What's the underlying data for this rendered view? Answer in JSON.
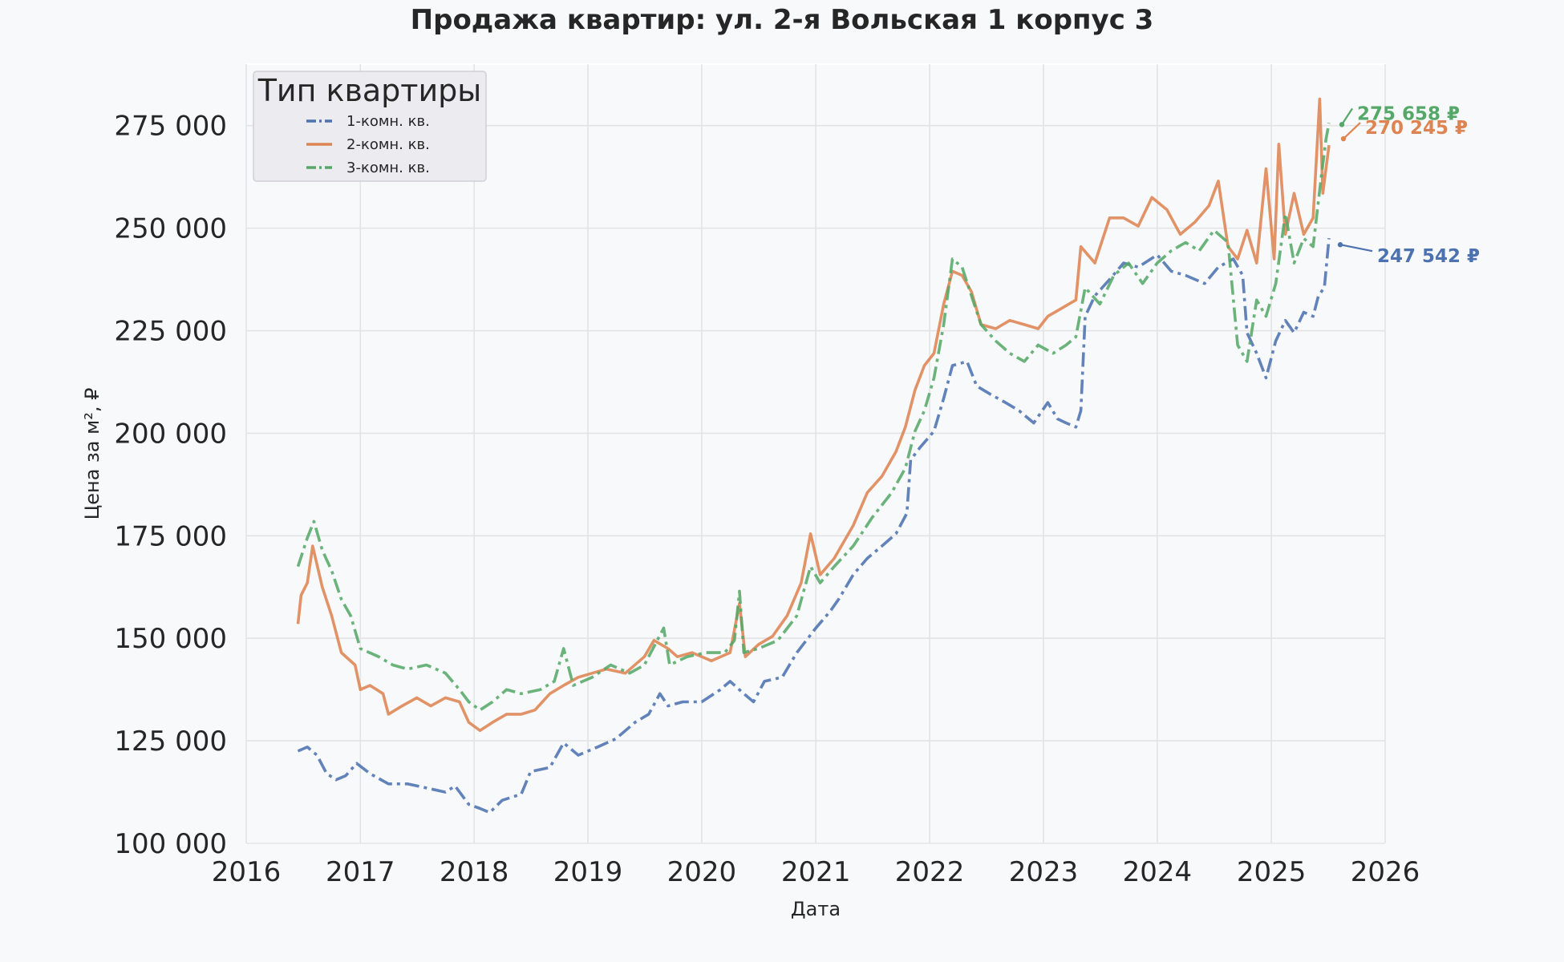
{
  "chart_data": {
    "type": "line",
    "title": "Продажа квартир: ул. 2-я Вольская 1 корпус 3",
    "xlabel": "Дата",
    "ylabel": "Цена за м², ₽",
    "xlim": [
      "2016-01-01",
      "2026-01-01"
    ],
    "ylim": [
      100000,
      290000
    ],
    "x_ticks": [
      "2016",
      "2017",
      "2018",
      "2019",
      "2020",
      "2021",
      "2022",
      "2023",
      "2024",
      "2025",
      "2026"
    ],
    "y_ticks": [
      "100 000",
      "125 000",
      "150 000",
      "175 000",
      "200 000",
      "225 000",
      "250 000",
      "275 000"
    ],
    "grid": true,
    "legend": {
      "title": "Тип квартиры",
      "placement": "top-left"
    },
    "series": [
      {
        "name": "1-комн. кв.",
        "color": "#4c72b0",
        "line_style": "dash-dot",
        "end_label": "247 542 ₽",
        "points": [
          [
            "2016-06-15",
            122500
          ],
          [
            "2016-07-15",
            123500
          ],
          [
            "2016-08-15",
            121500
          ],
          [
            "2016-09-15",
            117000
          ],
          [
            "2016-10-15",
            115500
          ],
          [
            "2016-11-15",
            116500
          ],
          [
            "2016-12-20",
            119500
          ],
          [
            "2017-02-01",
            117000
          ],
          [
            "2017-04-01",
            114500
          ],
          [
            "2017-06-01",
            114500
          ],
          [
            "2017-08-01",
            113500
          ],
          [
            "2017-10-01",
            112500
          ],
          [
            "2017-11-01",
            114000
          ],
          [
            "2017-12-15",
            109500
          ],
          [
            "2018-01-20",
            108500
          ],
          [
            "2018-02-20",
            107500
          ],
          [
            "2018-04-01",
            110500
          ],
          [
            "2018-06-01",
            112000
          ],
          [
            "2018-07-01",
            117500
          ],
          [
            "2018-09-01",
            118500
          ],
          [
            "2018-10-15",
            124500
          ],
          [
            "2018-12-01",
            121500
          ],
          [
            "2019-02-01",
            123500
          ],
          [
            "2019-04-01",
            125500
          ],
          [
            "2019-06-01",
            129500
          ],
          [
            "2019-07-15",
            131500
          ],
          [
            "2019-08-20",
            136500
          ],
          [
            "2019-09-15",
            133500
          ],
          [
            "2019-11-01",
            134500
          ],
          [
            "2020-01-01",
            134500
          ],
          [
            "2020-03-01",
            137500
          ],
          [
            "2020-04-01",
            139500
          ],
          [
            "2020-05-15",
            136500
          ],
          [
            "2020-06-15",
            134500
          ],
          [
            "2020-07-20",
            139500
          ],
          [
            "2020-09-15",
            140500
          ],
          [
            "2020-11-01",
            146500
          ],
          [
            "2021-01-01",
            152500
          ],
          [
            "2021-02-15",
            156500
          ],
          [
            "2021-03-15",
            159500
          ],
          [
            "2021-05-01",
            165500
          ],
          [
            "2021-06-15",
            169500
          ],
          [
            "2021-08-01",
            172500
          ],
          [
            "2021-09-15",
            175500
          ],
          [
            "2021-10-20",
            180500
          ],
          [
            "2021-11-01",
            193500
          ],
          [
            "2021-12-01",
            196500
          ],
          [
            "2022-01-15",
            200500
          ],
          [
            "2022-02-15",
            208500
          ],
          [
            "2022-03-15",
            216500
          ],
          [
            "2022-05-01",
            217500
          ],
          [
            "2022-06-01",
            211500
          ],
          [
            "2022-07-15",
            209500
          ],
          [
            "2022-09-01",
            207500
          ],
          [
            "2022-10-15",
            205500
          ],
          [
            "2022-12-01",
            202500
          ],
          [
            "2023-01-15",
            207500
          ],
          [
            "2023-02-15",
            203500
          ],
          [
            "2023-03-15",
            202500
          ],
          [
            "2023-04-15",
            201500
          ],
          [
            "2023-05-01",
            205500
          ],
          [
            "2023-05-15",
            228500
          ],
          [
            "2023-06-15",
            233500
          ],
          [
            "2023-08-01",
            237500
          ],
          [
            "2023-09-15",
            241500
          ],
          [
            "2023-11-01",
            240500
          ],
          [
            "2024-01-01",
            243500
          ],
          [
            "2024-02-15",
            239500
          ],
          [
            "2024-04-01",
            238500
          ],
          [
            "2024-06-01",
            236500
          ],
          [
            "2024-07-15",
            240500
          ],
          [
            "2024-09-01",
            242500
          ],
          [
            "2024-10-01",
            238500
          ],
          [
            "2024-10-15",
            224500
          ],
          [
            "2024-11-15",
            219500
          ],
          [
            "2024-12-15",
            213500
          ],
          [
            "2025-01-15",
            222500
          ],
          [
            "2025-02-15",
            227500
          ],
          [
            "2025-03-15",
            224500
          ],
          [
            "2025-04-15",
            229500
          ],
          [
            "2025-05-15",
            228500
          ],
          [
            "2025-06-01",
            233500
          ],
          [
            "2025-06-20",
            235500
          ],
          [
            "2025-07-05",
            247542
          ]
        ]
      },
      {
        "name": "2-комн. кв.",
        "color": "#dd8452",
        "line_style": "solid",
        "end_label": "270 245 ₽",
        "points": [
          [
            "2016-06-15",
            153500
          ],
          [
            "2016-06-25",
            160500
          ],
          [
            "2016-07-15",
            163500
          ],
          [
            "2016-08-01",
            172500
          ],
          [
            "2016-09-01",
            162500
          ],
          [
            "2016-10-01",
            155500
          ],
          [
            "2016-11-01",
            146500
          ],
          [
            "2016-12-15",
            143500
          ],
          [
            "2017-01-01",
            137500
          ],
          [
            "2017-02-01",
            138500
          ],
          [
            "2017-03-15",
            136500
          ],
          [
            "2017-04-01",
            131500
          ],
          [
            "2017-05-15",
            133500
          ],
          [
            "2017-07-01",
            135500
          ],
          [
            "2017-08-15",
            133500
          ],
          [
            "2017-10-01",
            135500
          ],
          [
            "2017-11-15",
            134500
          ],
          [
            "2017-12-15",
            129500
          ],
          [
            "2018-01-20",
            127500
          ],
          [
            "2018-03-01",
            129500
          ],
          [
            "2018-04-15",
            131500
          ],
          [
            "2018-06-01",
            131500
          ],
          [
            "2018-07-15",
            132500
          ],
          [
            "2018-09-01",
            136500
          ],
          [
            "2018-10-15",
            138500
          ],
          [
            "2018-12-01",
            140500
          ],
          [
            "2019-01-15",
            141500
          ],
          [
            "2019-03-01",
            142500
          ],
          [
            "2019-05-01",
            141500
          ],
          [
            "2019-07-01",
            145500
          ],
          [
            "2019-08-01",
            149500
          ],
          [
            "2019-09-15",
            147500
          ],
          [
            "2019-10-15",
            145500
          ],
          [
            "2019-12-01",
            146500
          ],
          [
            "2020-02-01",
            144500
          ],
          [
            "2020-04-01",
            146500
          ],
          [
            "2020-05-01",
            158500
          ],
          [
            "2020-05-20",
            145500
          ],
          [
            "2020-07-01",
            148500
          ],
          [
            "2020-08-15",
            150500
          ],
          [
            "2020-10-01",
            155500
          ],
          [
            "2020-11-15",
            163500
          ],
          [
            "2020-12-15",
            175500
          ],
          [
            "2021-01-15",
            165500
          ],
          [
            "2021-03-01",
            169500
          ],
          [
            "2021-05-01",
            177500
          ],
          [
            "2021-06-15",
            185500
          ],
          [
            "2021-08-01",
            189500
          ],
          [
            "2021-09-15",
            195500
          ],
          [
            "2021-10-15",
            201500
          ],
          [
            "2021-11-15",
            210500
          ],
          [
            "2021-12-15",
            216500
          ],
          [
            "2022-01-15",
            219500
          ],
          [
            "2022-02-15",
            231500
          ],
          [
            "2022-03-15",
            239500
          ],
          [
            "2022-04-15",
            238500
          ],
          [
            "2022-05-15",
            234500
          ],
          [
            "2022-06-15",
            226500
          ],
          [
            "2022-08-01",
            225500
          ],
          [
            "2022-09-15",
            227500
          ],
          [
            "2022-11-01",
            226500
          ],
          [
            "2022-12-15",
            225500
          ],
          [
            "2023-01-15",
            228500
          ],
          [
            "2023-03-01",
            230500
          ],
          [
            "2023-04-15",
            232500
          ],
          [
            "2023-05-01",
            245500
          ],
          [
            "2023-06-15",
            241500
          ],
          [
            "2023-08-01",
            252500
          ],
          [
            "2023-09-15",
            252500
          ],
          [
            "2023-11-01",
            250500
          ],
          [
            "2023-12-15",
            257500
          ],
          [
            "2024-02-01",
            254500
          ],
          [
            "2024-03-15",
            248500
          ],
          [
            "2024-05-01",
            251500
          ],
          [
            "2024-06-15",
            255500
          ],
          [
            "2024-07-15",
            261500
          ],
          [
            "2024-08-15",
            245500
          ],
          [
            "2024-09-15",
            242500
          ],
          [
            "2024-10-15",
            249500
          ],
          [
            "2024-11-15",
            241500
          ],
          [
            "2024-12-15",
            264500
          ],
          [
            "2025-01-10",
            242500
          ],
          [
            "2025-01-25",
            270500
          ],
          [
            "2025-02-15",
            248500
          ],
          [
            "2025-03-15",
            258500
          ],
          [
            "2025-04-15",
            248500
          ],
          [
            "2025-05-15",
            252500
          ],
          [
            "2025-06-05",
            281500
          ],
          [
            "2025-06-15",
            258500
          ],
          [
            "2025-07-05",
            270245
          ]
        ]
      },
      {
        "name": "3-комн. кв.",
        "color": "#55a868",
        "line_style": "dash-dot",
        "end_label": "275 658 ₽",
        "points": [
          [
            "2016-06-15",
            167500
          ],
          [
            "2016-07-15",
            174500
          ],
          [
            "2016-08-05",
            178500
          ],
          [
            "2016-09-01",
            171500
          ],
          [
            "2016-10-01",
            166500
          ],
          [
            "2016-11-01",
            159500
          ],
          [
            "2016-12-01",
            155500
          ],
          [
            "2017-01-01",
            147500
          ],
          [
            "2017-03-01",
            145500
          ],
          [
            "2017-04-15",
            143500
          ],
          [
            "2017-06-01",
            142500
          ],
          [
            "2017-08-01",
            143500
          ],
          [
            "2017-10-01",
            141500
          ],
          [
            "2017-11-15",
            137500
          ],
          [
            "2017-12-15",
            134500
          ],
          [
            "2018-01-20",
            132500
          ],
          [
            "2018-03-01",
            134500
          ],
          [
            "2018-04-15",
            137500
          ],
          [
            "2018-06-01",
            136500
          ],
          [
            "2018-08-01",
            137500
          ],
          [
            "2018-09-15",
            139500
          ],
          [
            "2018-10-15",
            147500
          ],
          [
            "2018-11-15",
            138500
          ],
          [
            "2019-01-15",
            140500
          ],
          [
            "2019-03-15",
            143500
          ],
          [
            "2019-05-15",
            141500
          ],
          [
            "2019-07-01",
            143500
          ],
          [
            "2019-09-01",
            152500
          ],
          [
            "2019-09-20",
            143500
          ],
          [
            "2019-11-15",
            145500
          ],
          [
            "2020-01-15",
            146500
          ],
          [
            "2020-03-15",
            146500
          ],
          [
            "2020-04-15",
            149500
          ],
          [
            "2020-05-01",
            161500
          ],
          [
            "2020-05-15",
            146500
          ],
          [
            "2020-07-01",
            147500
          ],
          [
            "2020-09-01",
            149500
          ],
          [
            "2020-11-01",
            155500
          ],
          [
            "2020-12-15",
            167500
          ],
          [
            "2021-01-15",
            163500
          ],
          [
            "2021-03-01",
            167500
          ],
          [
            "2021-05-01",
            172500
          ],
          [
            "2021-07-01",
            179500
          ],
          [
            "2021-09-01",
            185500
          ],
          [
            "2021-10-15",
            191500
          ],
          [
            "2021-11-15",
            200500
          ],
          [
            "2021-12-15",
            205500
          ],
          [
            "2022-01-15",
            213500
          ],
          [
            "2022-02-15",
            226500
          ],
          [
            "2022-03-15",
            242500
          ],
          [
            "2022-04-15",
            240500
          ],
          [
            "2022-05-15",
            233500
          ],
          [
            "2022-06-15",
            226500
          ],
          [
            "2022-08-01",
            222500
          ],
          [
            "2022-09-15",
            219500
          ],
          [
            "2022-11-01",
            217500
          ],
          [
            "2022-12-15",
            221500
          ],
          [
            "2023-02-01",
            219500
          ],
          [
            "2023-03-15",
            221500
          ],
          [
            "2023-04-15",
            223500
          ],
          [
            "2023-05-15",
            235500
          ],
          [
            "2023-07-01",
            231500
          ],
          [
            "2023-08-15",
            238500
          ],
          [
            "2023-10-01",
            241500
          ],
          [
            "2023-11-15",
            236500
          ],
          [
            "2024-01-01",
            241500
          ],
          [
            "2024-02-15",
            244500
          ],
          [
            "2024-04-01",
            246500
          ],
          [
            "2024-05-15",
            244500
          ],
          [
            "2024-07-01",
            249500
          ],
          [
            "2024-08-15",
            246500
          ],
          [
            "2024-09-15",
            221500
          ],
          [
            "2024-10-15",
            217500
          ],
          [
            "2024-11-15",
            232500
          ],
          [
            "2024-12-15",
            228500
          ],
          [
            "2025-01-15",
            236500
          ],
          [
            "2025-02-15",
            253500
          ],
          [
            "2025-03-15",
            241500
          ],
          [
            "2025-04-15",
            247500
          ],
          [
            "2025-05-15",
            245500
          ],
          [
            "2025-06-10",
            262500
          ],
          [
            "2025-06-25",
            271500
          ],
          [
            "2025-07-05",
            275658
          ]
        ]
      }
    ]
  }
}
